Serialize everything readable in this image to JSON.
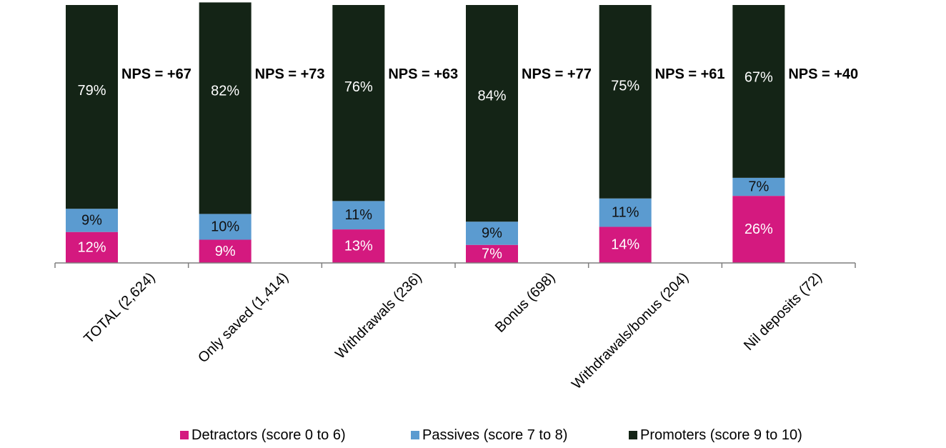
{
  "chart_data": {
    "type": "bar",
    "stacked": true,
    "orientation": "vertical",
    "categories": [
      "TOTAL (2,624)",
      "Only saved (1,414)",
      "Withdrawals (236)",
      "Bonus (698)",
      "Withdrawals/bonus (204)",
      "Nil deposits (72)"
    ],
    "series": [
      {
        "name": "Detractors (score 0 to 6)",
        "color": "#d4197f",
        "values": [
          12,
          9,
          13,
          7,
          14,
          26
        ],
        "labels": [
          "12%",
          "9%",
          "13%",
          "7%",
          "14%",
          "26%"
        ]
      },
      {
        "name": "Passives (score 7 to 8)",
        "color": "#5b9bd0",
        "values": [
          9,
          10,
          11,
          9,
          11,
          7
        ],
        "labels": [
          "9%",
          "10%",
          "11%",
          "9%",
          "11%",
          "7%"
        ]
      },
      {
        "name": "Promoters (score 9 to 10)",
        "color": "#142416",
        "values": [
          79,
          82,
          76,
          84,
          75,
          67
        ],
        "labels": [
          "79%",
          "82%",
          "76%",
          "84%",
          "75%",
          "67%"
        ]
      }
    ],
    "nps_labels": [
      "NPS = +67",
      "NPS = +73",
      "NPS = +63",
      "NPS = +77",
      "NPS = +61",
      "NPS = +40"
    ],
    "ylim": [
      0,
      100
    ],
    "grid": false,
    "legend_position": "bottom",
    "title": "",
    "xlabel": "",
    "ylabel": ""
  }
}
